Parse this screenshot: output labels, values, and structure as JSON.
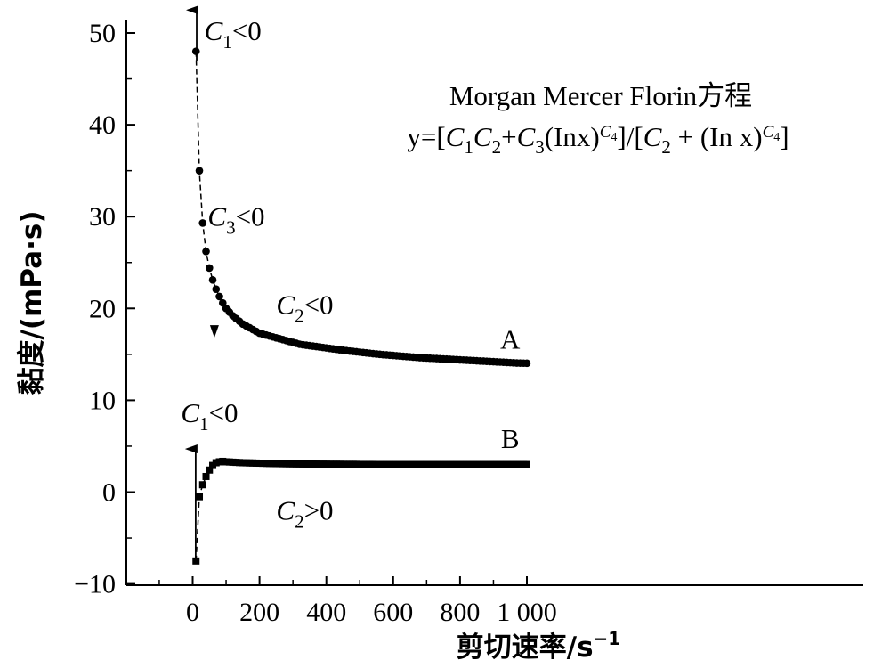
{
  "chart_data": {
    "type": "scatter",
    "xlabel": "剪切速率/s",
    "xlabel_exp": "−1",
    "ylabel": "黏度/(mPa·s)",
    "xlim": [
      -100,
      1000
    ],
    "ylim": [
      -10,
      52
    ],
    "x_ticks": [
      0,
      200,
      400,
      600,
      800,
      1000
    ],
    "x_tick_labels": [
      "0",
      "200",
      "400",
      "600",
      "800",
      "1 000"
    ],
    "y_ticks": [
      -10,
      0,
      10,
      20,
      30,
      40,
      50
    ],
    "y_tick_labels": [
      "−10",
      "0",
      "10",
      "20",
      "30",
      "40",
      "50"
    ],
    "equation_title": "Morgan Mercer Florin方程",
    "series": [
      {
        "name": "A",
        "marker": "circle",
        "color": "#000000",
        "x": [
          10,
          20,
          30,
          40,
          50,
          60,
          70,
          80,
          90,
          100,
          110,
          120,
          130,
          140,
          150,
          160,
          170,
          180,
          190,
          200,
          210,
          220,
          230,
          240,
          250,
          260,
          270,
          280,
          290,
          300,
          310,
          320,
          330,
          340,
          350,
          360,
          370,
          380,
          390,
          400,
          410,
          420,
          430,
          440,
          450,
          460,
          470,
          480,
          490,
          500,
          510,
          520,
          530,
          540,
          550,
          560,
          570,
          580,
          590,
          600,
          610,
          620,
          630,
          640,
          650,
          660,
          670,
          680,
          690,
          700,
          710,
          720,
          730,
          740,
          750,
          760,
          770,
          780,
          790,
          800,
          810,
          820,
          830,
          840,
          850,
          860,
          870,
          880,
          890,
          900,
          910,
          920,
          930,
          940,
          950,
          960,
          970,
          980,
          990,
          1000
        ],
        "y": [
          48.0,
          35.0,
          29.3,
          26.2,
          24.4,
          23.1,
          22.1,
          21.3,
          20.6,
          20.0,
          19.6,
          19.2,
          18.9,
          18.6,
          18.3,
          18.1,
          17.9,
          17.7,
          17.5,
          17.3,
          17.2,
          17.1,
          17.0,
          16.9,
          16.8,
          16.7,
          16.6,
          16.5,
          16.4,
          16.3,
          16.2,
          16.1,
          16.05,
          16.0,
          15.95,
          15.9,
          15.85,
          15.8,
          15.75,
          15.7,
          15.65,
          15.6,
          15.55,
          15.5,
          15.45,
          15.4,
          15.36,
          15.32,
          15.28,
          15.24,
          15.2,
          15.16,
          15.12,
          15.08,
          15.04,
          15.0,
          14.97,
          14.94,
          14.91,
          14.88,
          14.85,
          14.82,
          14.79,
          14.76,
          14.73,
          14.7,
          14.67,
          14.64,
          14.62,
          14.6,
          14.58,
          14.56,
          14.54,
          14.52,
          14.5,
          14.48,
          14.46,
          14.44,
          14.42,
          14.4,
          14.38,
          14.36,
          14.34,
          14.32,
          14.3,
          14.28,
          14.26,
          14.24,
          14.22,
          14.2,
          14.18,
          14.16,
          14.14,
          14.12,
          14.1,
          14.08,
          14.06,
          14.05,
          14.04,
          14.03
        ]
      },
      {
        "name": "B",
        "marker": "square",
        "color": "#000000",
        "x": [
          10,
          20,
          30,
          40,
          50,
          60,
          70,
          80,
          90,
          100,
          110,
          120,
          130,
          140,
          150,
          160,
          170,
          180,
          190,
          200,
          210,
          220,
          230,
          240,
          250,
          260,
          270,
          280,
          290,
          300,
          310,
          320,
          330,
          340,
          350,
          360,
          370,
          380,
          390,
          400,
          410,
          420,
          430,
          440,
          450,
          460,
          470,
          480,
          490,
          500,
          510,
          520,
          530,
          540,
          550,
          560,
          570,
          580,
          590,
          600,
          610,
          620,
          630,
          640,
          650,
          660,
          670,
          680,
          690,
          700,
          710,
          720,
          730,
          740,
          750,
          760,
          770,
          780,
          790,
          800,
          810,
          820,
          830,
          840,
          850,
          860,
          870,
          880,
          890,
          900,
          910,
          920,
          930,
          940,
          950,
          960,
          970,
          980,
          990,
          1000
        ],
        "y": [
          -7.5,
          -0.5,
          0.8,
          1.7,
          2.4,
          2.9,
          3.2,
          3.3,
          3.35,
          3.3,
          3.28,
          3.26,
          3.24,
          3.22,
          3.2,
          3.19,
          3.18,
          3.17,
          3.16,
          3.15,
          3.14,
          3.13,
          3.12,
          3.11,
          3.1,
          3.1,
          3.09,
          3.09,
          3.08,
          3.08,
          3.07,
          3.07,
          3.06,
          3.06,
          3.05,
          3.05,
          3.05,
          3.04,
          3.04,
          3.04,
          3.03,
          3.03,
          3.03,
          3.03,
          3.02,
          3.02,
          3.02,
          3.02,
          3.02,
          3.01,
          3.01,
          3.01,
          3.01,
          3.01,
          3.0,
          3.0,
          3.0,
          3.0,
          3.0,
          3.0,
          3.0,
          3.0,
          3.0,
          3.0,
          3.0,
          3.0,
          3.0,
          3.0,
          3.0,
          3.0,
          3.0,
          3.0,
          3.0,
          3.0,
          3.0,
          3.0,
          3.0,
          3.0,
          3.0,
          3.0,
          3.0,
          3.0,
          3.0,
          3.0,
          3.0,
          3.0,
          3.0,
          3.0,
          3.0,
          3.0,
          3.0,
          3.0,
          3.0,
          3.0,
          3.0,
          3.0,
          3.0,
          3.0,
          3.0,
          3.0
        ]
      }
    ],
    "annotations": [
      {
        "id": "a-c1",
        "text": "C",
        "sub": "1",
        "rest": "<0",
        "x": 35,
        "y": 49.2
      },
      {
        "id": "a-c3",
        "text": "C",
        "sub": "3",
        "rest": "<0",
        "x": 45,
        "y": 29.0
      },
      {
        "id": "a-c2",
        "text": "C",
        "sub": "2",
        "rest": "<0",
        "x": 250,
        "y": 19.4
      },
      {
        "id": "b-c1",
        "text": "C",
        "sub": "1",
        "rest": "<0",
        "x": -35,
        "y": 7.6
      },
      {
        "id": "b-c2",
        "text": "C",
        "sub": "2",
        "rest": ">0",
        "x": 250,
        "y": -3.0
      }
    ],
    "series_labels": [
      {
        "text": "A",
        "x": 950,
        "y": 15.6
      },
      {
        "text": "B",
        "x": 950,
        "y": 4.8
      }
    ]
  }
}
